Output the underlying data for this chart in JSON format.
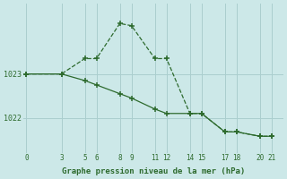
{
  "line1_x": [
    0,
    3,
    5,
    6,
    8,
    9,
    11,
    12,
    14,
    15,
    17,
    18,
    20,
    21
  ],
  "line1_y": [
    1023.0,
    1023.0,
    1023.35,
    1023.35,
    1024.15,
    1024.1,
    1023.35,
    1023.35,
    1022.1,
    1022.1,
    1021.68,
    1021.68,
    1021.58,
    1021.58
  ],
  "line2_x": [
    0,
    3,
    5,
    6,
    8,
    9,
    11,
    12,
    14,
    15,
    17,
    18,
    20,
    21
  ],
  "line2_y": [
    1023.0,
    1023.0,
    1022.85,
    1022.75,
    1022.55,
    1022.45,
    1022.2,
    1022.1,
    1022.1,
    1022.1,
    1021.68,
    1021.68,
    1021.58,
    1021.58
  ],
  "line_color": "#2d6a2d",
  "bg_color": "#cce8e8",
  "grid_color": "#aacece",
  "xlabel": "Graphe pression niveau de la mer (hPa)",
  "xticks": [
    0,
    3,
    5,
    6,
    8,
    9,
    11,
    12,
    14,
    15,
    17,
    18,
    20,
    21
  ],
  "yticks": [
    1022,
    1023
  ],
  "ylim": [
    1021.2,
    1024.6
  ],
  "xlim": [
    -0.3,
    22.0
  ]
}
